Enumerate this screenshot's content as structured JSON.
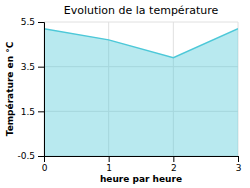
{
  "chart_data": {
    "type": "area",
    "title": "Evolution de la température",
    "xlabel": "heure par heure",
    "ylabel": "Température en °C",
    "x": [
      0,
      1,
      2,
      3
    ],
    "values": [
      5.2,
      4.7,
      3.9,
      5.2
    ],
    "color": "#4dc8d8",
    "xlim": [
      0,
      3
    ],
    "ylim": [
      -0.5,
      5.5
    ],
    "xticks": [
      0,
      1,
      2,
      3
    ],
    "yticks": [
      -0.5,
      1.5,
      3.5,
      5.5
    ],
    "grid": true
  }
}
